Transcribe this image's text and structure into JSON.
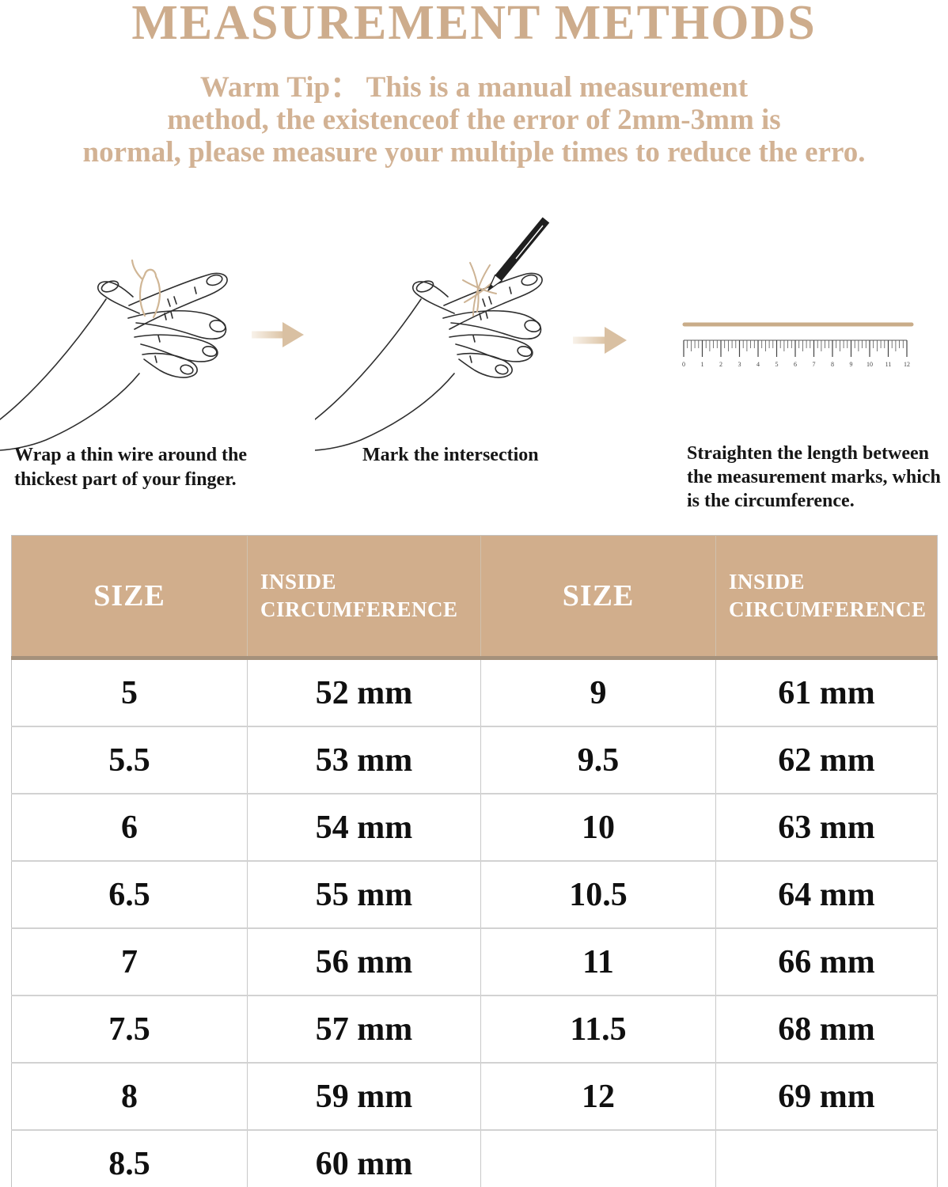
{
  "title": "MEASUREMENT METHODS",
  "warm_tip": {
    "lines": [
      "Warm Tip： This is a manual measurement",
      "method, the existenceof the error of 2mm-3mm is",
      "normal, please measure your multiple times to reduce the erro."
    ]
  },
  "steps": [
    {
      "caption": "Wrap a thin wire around the thickest part of your finger."
    },
    {
      "caption": "Mark the intersection"
    },
    {
      "caption": "Straighten the length between the measurement marks, which is the circumference."
    }
  ],
  "ruler": {
    "unit_labels": [
      "0",
      "1",
      "2",
      "3",
      "4",
      "5",
      "6",
      "7",
      "8",
      "9",
      "10",
      "11",
      "12"
    ]
  },
  "size_table": {
    "headers": [
      "SIZE",
      "INSIDE CIRCUMFERENCE",
      "SIZE",
      "INSIDE CIRCUMFERENCE"
    ],
    "rows": [
      [
        "5",
        "52 mm",
        "9",
        "61 mm"
      ],
      [
        "5.5",
        "53 mm",
        "9.5",
        "62 mm"
      ],
      [
        "6",
        "54 mm",
        "10",
        "63 mm"
      ],
      [
        "6.5",
        "55 mm",
        "10.5",
        "64 mm"
      ],
      [
        "7",
        "56 mm",
        "11",
        "66 mm"
      ],
      [
        "7.5",
        "57 mm",
        "11.5",
        "68 mm"
      ],
      [
        "8",
        "59 mm",
        "12",
        "69 mm"
      ],
      [
        "8.5",
        "60 mm",
        "",
        ""
      ]
    ]
  },
  "colors": {
    "accent_tan_text": "#cdac8c",
    "warm_tip_text": "#d2b294",
    "table_header_bg": "#d1ae8c",
    "table_header_border": "#a5917b",
    "arrow": "#d9c0a2",
    "wire": "#d0b695",
    "line_art": "#2e2e2e"
  }
}
